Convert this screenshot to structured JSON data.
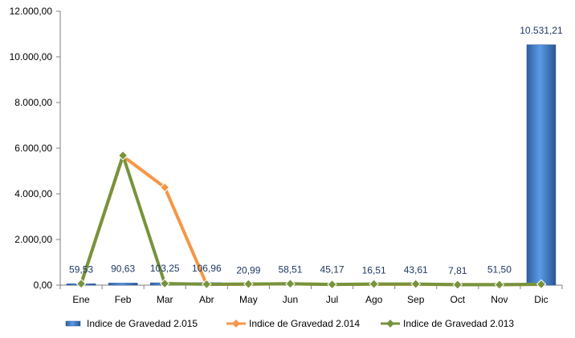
{
  "chart_data": {
    "type": "bar",
    "categories": [
      "Ene",
      "Feb",
      "Mar",
      "Abr",
      "May",
      "Jun",
      "Jul",
      "Ago",
      "Sep",
      "Oct",
      "Nov",
      "Dic"
    ],
    "ylim": [
      0,
      12000
    ],
    "y_ticks": [
      "0,00",
      "2.000,00",
      "4.000,00",
      "6.000,00",
      "8.000,00",
      "10.000,00",
      "12.000,00"
    ],
    "y_tick_values": [
      0,
      2000,
      4000,
      6000,
      8000,
      10000,
      12000
    ],
    "grid": false,
    "legend_position": "bottom",
    "series": [
      {
        "name": "Indice de Gravedad 2.015",
        "type": "bar",
        "color": "#3A78C9",
        "values": [
          59.53,
          90.63,
          103.25,
          106.96,
          20.99,
          58.51,
          45.17,
          16.51,
          43.61,
          7.81,
          51.5,
          10531.21
        ],
        "labels": [
          "59,53",
          "90,63",
          "103,25",
          "106,96",
          "20,99",
          "58,51",
          "45,17",
          "16,51",
          "43,61",
          "7,81",
          "51,50",
          "10.531,21"
        ]
      },
      {
        "name": "Indice de Gravedad 2.014",
        "type": "line",
        "color": "#F79646",
        "values": [
          60,
          5650,
          4280,
          30,
          40,
          60,
          30,
          40,
          40,
          20,
          20,
          30
        ]
      },
      {
        "name": "Indice de Gravedad  2.013",
        "type": "line",
        "color": "#77933C",
        "values": [
          60,
          5680,
          70,
          40,
          50,
          60,
          30,
          50,
          50,
          20,
          20,
          40
        ]
      }
    ]
  }
}
